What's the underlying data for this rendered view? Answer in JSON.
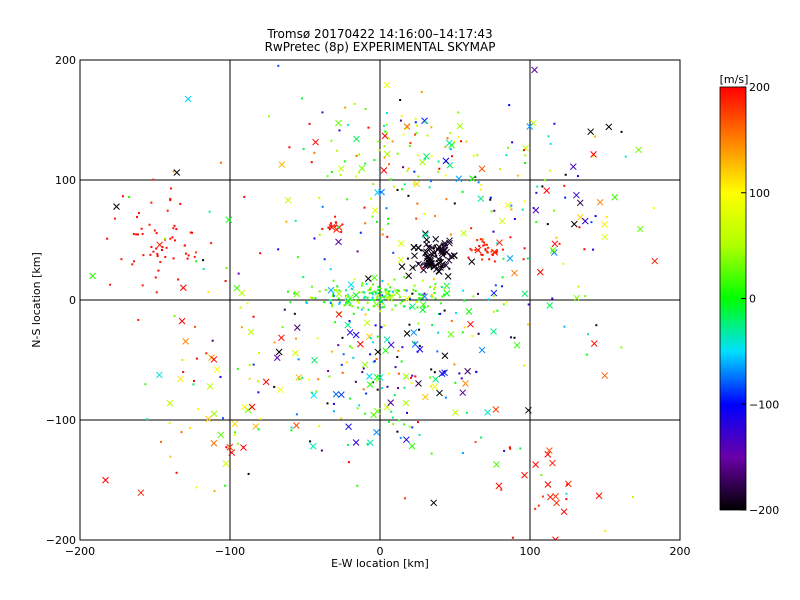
{
  "chart_data": {
    "type": "scatter",
    "title": "Tromsø 20170422 14:16:00–14:17:43",
    "subtitle": "RwPretec (8p) EXPERIMENTAL SKYMAP",
    "xlabel": "E-W location [km]",
    "ylabel": "N-S location [km]",
    "xlim": [
      -200,
      200
    ],
    "ylim": [
      -200,
      200
    ],
    "x_ticks": [
      -200,
      -100,
      0,
      100,
      200
    ],
    "y_ticks": [
      -200,
      -100,
      0,
      100,
      200
    ],
    "x_tick_labels": [
      "−200",
      "−100",
      "0",
      "100",
      "200"
    ],
    "y_tick_labels": [
      "−200",
      "−100",
      "0",
      "100",
      "200"
    ],
    "grid": true,
    "marker_shapes": [
      "dot",
      "x"
    ],
    "colorbar": {
      "label": "[m/s]",
      "range": [
        -200,
        200
      ],
      "ticks": [
        200,
        100,
        0,
        -100,
        -200
      ],
      "tick_labels": [
        "200",
        "100",
        "0",
        "−100",
        "−200"
      ],
      "colormap_stops": [
        {
          "v": -200,
          "color": "#000000"
        },
        {
          "v": -150,
          "color": "#6a00a8"
        },
        {
          "v": -100,
          "color": "#0000ff"
        },
        {
          "v": -50,
          "color": "#00e0ff"
        },
        {
          "v": 0,
          "color": "#00ff00"
        },
        {
          "v": 50,
          "color": "#b0ff00"
        },
        {
          "v": 100,
          "color": "#ffff00"
        },
        {
          "v": 150,
          "color": "#ff8000"
        },
        {
          "v": 200,
          "color": "#ff0000"
        }
      ]
    },
    "clusters": [
      {
        "cx": 2,
        "cy": 3,
        "sx": 28,
        "sy": 6,
        "n": 180,
        "vmean": 10,
        "vstd": 35,
        "xfrac": 0.15
      },
      {
        "cx": 35,
        "cy": 35,
        "sx": 8,
        "sy": 8,
        "n": 90,
        "vmean": -195,
        "vstd": 6,
        "xfrac": 0.7
      },
      {
        "cx": -150,
        "cy": 50,
        "sx": 18,
        "sy": 18,
        "n": 60,
        "vmean": 195,
        "vstd": 5,
        "xfrac": 0.05
      },
      {
        "cx": 70,
        "cy": 42,
        "sx": 7,
        "sy": 7,
        "n": 35,
        "vmean": 190,
        "vstd": 8,
        "xfrac": 0.1
      },
      {
        "cx": -30,
        "cy": 63,
        "sx": 4,
        "sy": 3,
        "n": 15,
        "vmean": 195,
        "vstd": 5,
        "xfrac": 0.2
      },
      {
        "cx": 15,
        "cy": 120,
        "sx": 40,
        "sy": 25,
        "n": 120,
        "vmean": 60,
        "vstd": 80,
        "xfrac": 0.15
      },
      {
        "cx": 0,
        "cy": -70,
        "sx": 40,
        "sy": 35,
        "n": 130,
        "vmean": -60,
        "vstd": 110,
        "xfrac": 0.25
      },
      {
        "cx": 0,
        "cy": 0,
        "sx": 90,
        "sy": 90,
        "n": 240,
        "vmean": 0,
        "vstd": 140,
        "xfrac": 0.3
      },
      {
        "cx": 120,
        "cy": 80,
        "sx": 30,
        "sy": 40,
        "n": 60,
        "vmean": 0,
        "vstd": 150,
        "xfrac": 0.35
      },
      {
        "cx": -100,
        "cy": -90,
        "sx": 25,
        "sy": 40,
        "n": 50,
        "vmean": 150,
        "vstd": 60,
        "xfrac": 0.5
      },
      {
        "cx": 110,
        "cy": -160,
        "sx": 20,
        "sy": 25,
        "n": 25,
        "vmean": 190,
        "vstd": 10,
        "xfrac": 0.6
      }
    ]
  }
}
